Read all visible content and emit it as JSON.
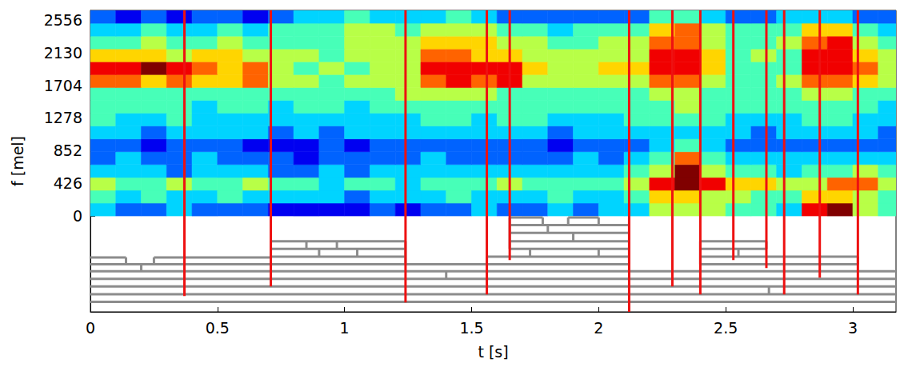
{
  "chart_data": {
    "type": "heatmap",
    "xlabel": "t [s]",
    "ylabel": "f [mel]",
    "xlim": [
      0,
      3.17
    ],
    "ylim": [
      -1250,
      2680
    ],
    "xticks": [
      0,
      0.5,
      1,
      1.5,
      2,
      2.5,
      3
    ],
    "yticks": [
      0,
      426,
      852,
      1278,
      1704,
      2130,
      2556
    ],
    "tick_labels": true,
    "grid": false,
    "color_range": [
      0,
      9
    ],
    "x_edges": [
      0,
      0.1,
      0.2,
      0.3,
      0.4,
      0.5,
      0.6,
      0.7,
      0.8,
      0.9,
      1.0,
      1.1,
      1.2,
      1.3,
      1.4,
      1.5,
      1.6,
      1.7,
      1.8,
      1.9,
      2.0,
      2.1,
      2.2,
      2.3,
      2.4,
      2.5,
      2.6,
      2.7,
      2.8,
      2.9,
      3.0,
      3.1,
      3.2
    ],
    "y_edges": [
      0,
      167.5,
      335,
      502.5,
      670,
      837.5,
      1005,
      1172.5,
      1340,
      1507.5,
      1675,
      1842.5,
      2010,
      2177.5,
      2345,
      2512.5,
      2680
    ],
    "cells": [
      [
        3,
        2,
        2,
        3,
        2,
        2,
        2,
        1,
        1,
        1,
        1,
        2,
        1,
        2,
        2,
        3,
        2,
        2,
        3,
        2,
        3,
        3,
        5,
        5,
        5,
        4,
        4,
        3,
        8,
        9,
        5,
        4
      ],
      [
        4,
        3,
        4,
        3,
        3,
        4,
        3,
        3,
        3,
        3,
        2,
        3,
        3,
        3,
        4,
        3,
        3,
        3,
        4,
        3,
        3,
        4,
        6,
        6,
        5,
        5,
        4,
        4,
        6,
        6,
        5,
        4
      ],
      [
        5,
        4,
        4,
        5,
        4,
        4,
        5,
        4,
        4,
        3,
        4,
        4,
        3,
        4,
        4,
        4,
        5,
        4,
        4,
        4,
        4,
        5,
        8,
        9,
        8,
        6,
        6,
        5,
        5,
        7,
        7,
        5
      ],
      [
        3,
        3,
        3,
        2,
        3,
        3,
        3,
        2,
        2,
        3,
        2,
        3,
        3,
        3,
        3,
        3,
        3,
        3,
        3,
        3,
        3,
        4,
        5,
        9,
        5,
        4,
        4,
        3,
        4,
        4,
        5,
        4
      ],
      [
        2,
        3,
        2,
        2,
        3,
        2,
        2,
        2,
        1,
        2,
        2,
        2,
        2,
        3,
        2,
        2,
        2,
        2,
        2,
        3,
        2,
        3,
        4,
        7,
        4,
        3,
        3,
        3,
        3,
        3,
        3,
        3
      ],
      [
        2,
        2,
        1,
        2,
        2,
        2,
        1,
        1,
        1,
        2,
        1,
        2,
        2,
        2,
        2,
        2,
        2,
        2,
        1,
        2,
        2,
        2,
        3,
        4,
        3,
        2,
        2,
        2,
        2,
        2,
        2,
        2
      ],
      [
        3,
        3,
        2,
        3,
        3,
        3,
        3,
        2,
        3,
        2,
        3,
        3,
        3,
        3,
        3,
        3,
        3,
        3,
        2,
        3,
        3,
        3,
        3,
        3,
        3,
        3,
        2,
        3,
        3,
        3,
        3,
        2
      ],
      [
        4,
        3,
        3,
        4,
        3,
        3,
        3,
        3,
        3,
        3,
        3,
        3,
        3,
        4,
        4,
        3,
        4,
        4,
        3,
        3,
        3,
        4,
        4,
        4,
        4,
        3,
        3,
        3,
        4,
        4,
        3,
        3
      ],
      [
        4,
        4,
        4,
        4,
        3,
        4,
        4,
        3,
        4,
        4,
        3,
        4,
        4,
        4,
        4,
        4,
        4,
        4,
        4,
        4,
        4,
        4,
        4,
        5,
        4,
        4,
        4,
        4,
        4,
        4,
        4,
        3
      ],
      [
        4,
        4,
        4,
        4,
        4,
        4,
        4,
        4,
        4,
        4,
        4,
        4,
        5,
        5,
        5,
        5,
        4,
        4,
        4,
        4,
        4,
        4,
        5,
        5,
        4,
        4,
        4,
        4,
        5,
        5,
        4,
        4
      ],
      [
        7,
        7,
        6,
        7,
        6,
        6,
        7,
        5,
        5,
        4,
        5,
        5,
        5,
        7,
        8,
        7,
        8,
        5,
        5,
        5,
        5,
        5,
        7,
        7,
        5,
        4,
        4,
        5,
        7,
        7,
        6,
        5
      ],
      [
        8,
        8,
        9,
        8,
        7,
        6,
        7,
        5,
        4,
        5,
        4,
        5,
        5,
        8,
        8,
        8,
        8,
        6,
        5,
        5,
        6,
        6,
        8,
        8,
        6,
        4,
        4,
        4,
        8,
        8,
        7,
        5
      ],
      [
        6,
        6,
        6,
        5,
        6,
        6,
        5,
        5,
        5,
        4,
        5,
        5,
        5,
        7,
        7,
        6,
        6,
        5,
        5,
        5,
        5,
        5,
        8,
        8,
        6,
        4,
        5,
        4,
        8,
        8,
        6,
        5
      ],
      [
        4,
        4,
        5,
        4,
        4,
        5,
        4,
        4,
        4,
        4,
        5,
        5,
        5,
        6,
        6,
        6,
        5,
        5,
        4,
        4,
        5,
        5,
        7,
        7,
        5,
        4,
        4,
        5,
        7,
        8,
        5,
        4
      ],
      [
        3,
        3,
        4,
        3,
        3,
        4,
        3,
        4,
        4,
        4,
        5,
        5,
        4,
        5,
        5,
        5,
        4,
        4,
        3,
        4,
        4,
        4,
        6,
        7,
        5,
        4,
        4,
        4,
        6,
        6,
        4,
        3
      ],
      [
        2,
        1,
        2,
        1,
        2,
        2,
        1,
        2,
        3,
        3,
        4,
        3,
        3,
        3,
        4,
        3,
        2,
        2,
        2,
        2,
        2,
        2,
        4,
        4,
        3,
        2,
        2,
        3,
        3,
        3,
        2,
        2
      ]
    ],
    "boundaries": {
      "color": "#ee1111",
      "t": [
        0.37,
        0.71,
        1.24,
        1.56,
        1.65,
        2.12,
        2.29,
        2.4,
        2.53,
        2.66,
        2.73,
        2.87,
        3.02
      ],
      "bottom": [
        -1044,
        -919,
        -1128,
        -1023,
        -574,
        -1250,
        -919,
        -1023,
        -574,
        -679,
        -1023,
        -804,
        -1023
      ]
    },
    "tree": {
      "color": "#8c8c8c",
      "h": [
        [
          0,
          3.2,
          -1120
        ],
        [
          0,
          3.2,
          -1020
        ],
        [
          0,
          3.2,
          -920
        ],
        [
          0,
          3.2,
          -820
        ],
        [
          0,
          3.2,
          -720
        ],
        [
          0,
          2.12,
          -630
        ],
        [
          2.4,
          3.02,
          -630
        ],
        [
          0,
          0.14,
          -540
        ],
        [
          0.25,
          0.71,
          -540
        ],
        [
          0.71,
          1.24,
          -330
        ],
        [
          0.71,
          1.24,
          -430
        ],
        [
          0.71,
          1.24,
          -530
        ],
        [
          1.56,
          2.12,
          -530
        ],
        [
          1.65,
          2.12,
          -430
        ],
        [
          1.65,
          2.12,
          -330
        ],
        [
          1.65,
          2.12,
          -220
        ],
        [
          1.65,
          2.12,
          -120
        ],
        [
          1.65,
          1.78,
          -20
        ],
        [
          1.88,
          2.0,
          -20
        ],
        [
          2.4,
          2.66,
          -330
        ],
        [
          2.4,
          2.66,
          -430
        ],
        [
          2.4,
          3.02,
          -530
        ]
      ],
      "v": [
        [
          0.14,
          -540,
          -630
        ],
        [
          0.25,
          -540,
          -630
        ],
        [
          0.2,
          -630,
          -720
        ],
        [
          0.85,
          -330,
          -430
        ],
        [
          0.97,
          -330,
          -430
        ],
        [
          0.9,
          -430,
          -530
        ],
        [
          1.05,
          -430,
          -530
        ],
        [
          1.4,
          -720,
          -820
        ],
        [
          1.78,
          -20,
          -120
        ],
        [
          1.88,
          -20,
          -120
        ],
        [
          2.0,
          -20,
          -120
        ],
        [
          1.8,
          -120,
          -220
        ],
        [
          1.9,
          -220,
          -330
        ],
        [
          1.73,
          -430,
          -530
        ],
        [
          2.0,
          -430,
          -530
        ],
        [
          2.55,
          -430,
          -530
        ],
        [
          2.67,
          -920,
          -1020
        ],
        [
          0.71,
          -330,
          -540
        ],
        [
          1.24,
          -330,
          -630
        ],
        [
          1.65,
          -20,
          -430
        ],
        [
          2.12,
          -20,
          -630
        ],
        [
          2.4,
          -330,
          -630
        ],
        [
          2.66,
          -330,
          -430
        ],
        [
          3.02,
          -530,
          -630
        ],
        [
          1.56,
          -530,
          -630
        ]
      ]
    }
  }
}
